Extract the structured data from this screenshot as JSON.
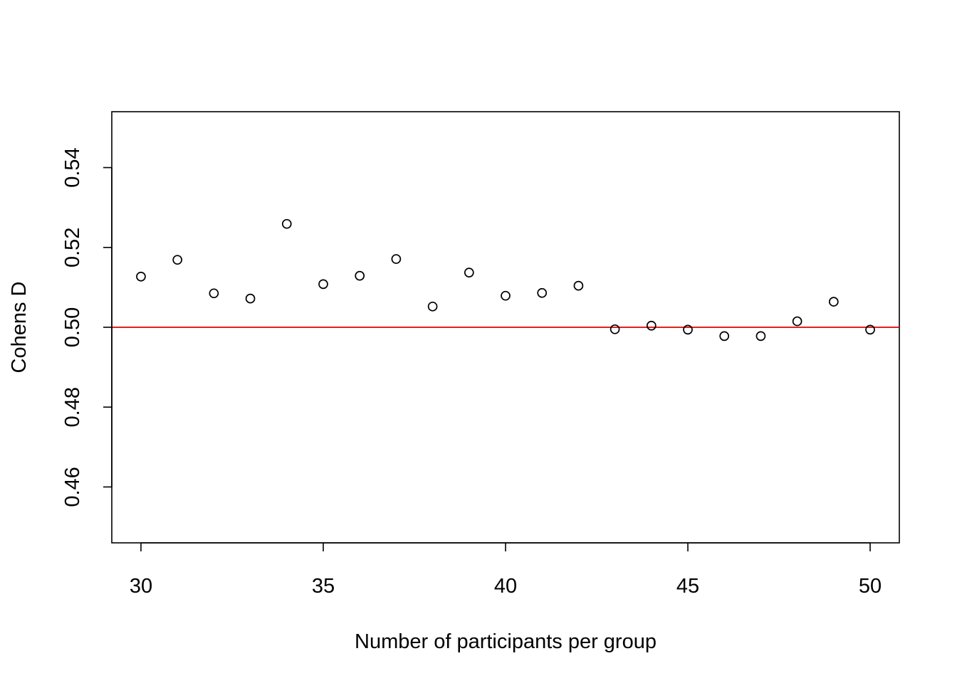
{
  "chart_data": {
    "type": "scatter",
    "title": "",
    "xlabel": "Number of participants per group",
    "ylabel": "Cohens D",
    "xlim": [
      29.2,
      50.8
    ],
    "ylim": [
      0.446,
      0.554
    ],
    "x_ticks": [
      30,
      35,
      40,
      45,
      50
    ],
    "x_tick_labels": [
      "30",
      "35",
      "40",
      "45",
      "50"
    ],
    "y_ticks": [
      0.46,
      0.48,
      0.5,
      0.52,
      0.54
    ],
    "y_tick_labels": [
      "0.46",
      "0.48",
      "0.50",
      "0.52",
      "0.54"
    ],
    "grid": false,
    "reference_line": {
      "y": 0.5,
      "color": "#dd0000"
    },
    "point_color": "#000000",
    "series": [
      {
        "name": "Cohens D",
        "x": [
          30,
          31,
          32,
          33,
          34,
          35,
          36,
          37,
          38,
          39,
          40,
          41,
          42,
          43,
          44,
          45,
          46,
          47,
          48,
          49,
          50
        ],
        "y": [
          0.5127,
          0.5169,
          0.5085,
          0.5072,
          0.5259,
          0.5108,
          0.5129,
          0.5171,
          0.5052,
          0.5137,
          0.5079,
          0.5086,
          0.5104,
          0.4995,
          0.5004,
          0.4994,
          0.4978,
          0.4978,
          0.5015,
          0.5064,
          0.4994
        ]
      }
    ]
  }
}
